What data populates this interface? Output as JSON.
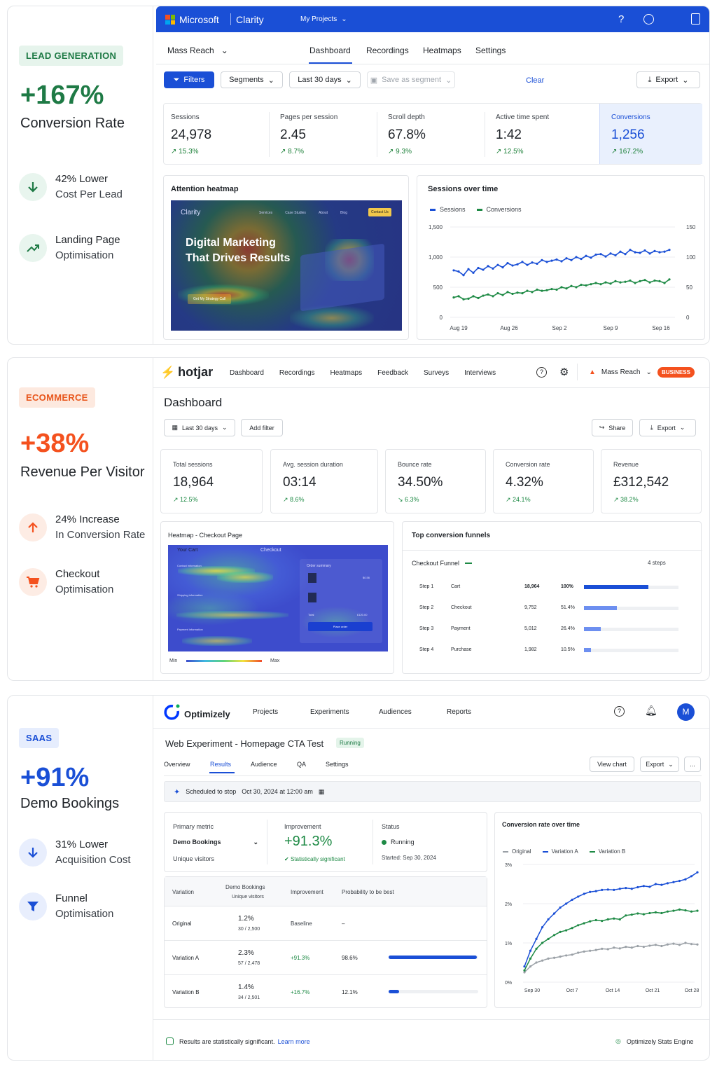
{
  "clarity": {
    "tag": "LEAD GENERATION",
    "big_stat": "+167%",
    "big_label": "Conversion Rate",
    "feat1_line1": "42% Lower",
    "feat1_line2": "Cost Per Lead",
    "feat2_line1": "Landing Page",
    "feat2_line2": "Optimisation",
    "brand": "Microsoft",
    "product": "Clarity",
    "my_projects": "My Projects",
    "project": "Mass Reach",
    "tabs": [
      "Dashboard",
      "Recordings",
      "Heatmaps",
      "Settings"
    ],
    "filters": "Filters",
    "segments": "Segments",
    "date_range": "Last 30 days",
    "save_segment": "Save as segment",
    "clear": "Clear",
    "export": "Export",
    "kpis": [
      {
        "label": "Sessions",
        "value": "24,978",
        "delta": "15.3%"
      },
      {
        "label": "Pages per session",
        "value": "2.45",
        "delta": "8.7%"
      },
      {
        "label": "Scroll depth",
        "value": "67.8%",
        "delta": "9.3%"
      },
      {
        "label": "Active time spent",
        "value": "1:42",
        "delta": "12.5%"
      },
      {
        "label": "Conversions",
        "value": "1,256",
        "delta": "167.2%"
      }
    ],
    "heatmap_title": "Attention heatmap",
    "heatmap_site": {
      "logo": "Clarity",
      "nav": [
        "Services",
        "Case Studies",
        "About",
        "Blog"
      ],
      "contact": "Contact Us",
      "headline1": "Digital Marketing",
      "headline2": "That Drives Results",
      "cta": "Get My Strategy Call"
    },
    "chart_title": "Sessions over time",
    "legend": [
      "Sessions",
      "Conversions"
    ],
    "colors": {
      "sessions": "#1a4fd6",
      "conversions": "#1e8a45",
      "brand_bar": "#1a4fd6"
    }
  },
  "hotjar": {
    "tag": "ECOMMERCE",
    "big_stat": "+38%",
    "big_label": "Revenue Per Visitor",
    "feat1_line1": "24% Increase",
    "feat1_line2": "In Conversion Rate",
    "feat2_line1": "Checkout",
    "feat2_line2": "Optimisation",
    "brand": "hotjar",
    "nav": [
      "Dashboard",
      "Recordings",
      "Heatmaps",
      "Feedback",
      "Surveys",
      "Interviews"
    ],
    "account": "Mass Reach",
    "plan": "BUSINESS",
    "page_title": "Dashboard",
    "date_range": "Last 30 days",
    "add_filter": "Add filter",
    "share": "Share",
    "export": "Export",
    "kpis": [
      {
        "label": "Total sessions",
        "value": "18,964",
        "delta": "12.5%",
        "dir": "up"
      },
      {
        "label": "Avg. session duration",
        "value": "03:14",
        "delta": "8.6%",
        "dir": "up"
      },
      {
        "label": "Bounce rate",
        "value": "34.50%",
        "delta": "6.3%",
        "dir": "down"
      },
      {
        "label": "Conversion rate",
        "value": "4.32%",
        "delta": "24.1%",
        "dir": "up"
      },
      {
        "label": "Revenue",
        "value": "£312,542",
        "delta": "38.2%",
        "dir": "up"
      }
    ],
    "heatmap_title": "Heatmap - Checkout Page",
    "heatmap_page": {
      "cart": "Your Cart",
      "checkout": "Checkout",
      "contact": "Contact information",
      "shipping": "Shipping information",
      "payment": "Payment information",
      "order_summary": "Order summary",
      "total": "Total",
      "total_value": "£120.00",
      "item_price": "$0.56",
      "place_order": "Place order"
    },
    "scale_min": "Min",
    "scale_max": "Max",
    "funnel_title": "Top conversion funnels",
    "funnel_name": "Checkout Funnel",
    "funnel_steps_count": "4 steps",
    "funnel": [
      {
        "step": "Step 1",
        "name": "Cart",
        "count": "18,964",
        "pct": "100%",
        "frac": 1.0
      },
      {
        "step": "Step 2",
        "name": "Checkout",
        "count": "9,752",
        "pct": "51.4%",
        "frac": 0.514
      },
      {
        "step": "Step 3",
        "name": "Payment",
        "count": "5,012",
        "pct": "26.4%",
        "frac": 0.264
      },
      {
        "step": "Step 4",
        "name": "Purchase",
        "count": "1,982",
        "pct": "10.5%",
        "frac": 0.105
      }
    ],
    "colors": {
      "brand": "#f4511e",
      "bar_primary": "#1a4fd6",
      "bar_secondary": "#6d8ff0"
    }
  },
  "optimizely": {
    "tag": "SAAS",
    "big_stat": "+91%",
    "big_label": "Demo Bookings",
    "feat1_line1": "31% Lower",
    "feat1_line2": "Acquisition Cost",
    "feat2_line1": "Funnel",
    "feat2_line2": "Optimisation",
    "brand": "Optimizely",
    "nav": [
      "Projects",
      "Experiments",
      "Audiences",
      "Reports"
    ],
    "avatar": "M",
    "experiment": "Web Experiment - Homepage CTA Test",
    "status_badge": "Running",
    "tabs": [
      "Overview",
      "Results",
      "Audience",
      "QA",
      "Settings"
    ],
    "view_chart": "View chart",
    "export": "Export",
    "more": "...",
    "schedule_label": "Scheduled to stop",
    "schedule_date": "Oct 30, 2024 at 12:00 am",
    "primary_metric_label": "Primary metric",
    "primary_metric": "Demo Bookings",
    "primary_metric_sub": "Unique visitors",
    "improvement_label": "Improvement",
    "improvement_value": "+91.3%",
    "significance": "Statistically significant",
    "status_label": "Status",
    "status_value": "Running",
    "started": "Started: Sep 30, 2024",
    "table_headers": {
      "variation": "Variation",
      "metric": "Demo Bookings",
      "metric_sub": "Unique visitors",
      "improvement": "Improvement",
      "probability": "Probability to be best"
    },
    "rows": [
      {
        "name": "Original",
        "rate": "1.2%",
        "counts": "30 / 2,500",
        "improvement": "Baseline",
        "probability": "–",
        "prob_frac": null
      },
      {
        "name": "Variation A",
        "rate": "2.3%",
        "counts": "57 / 2,478",
        "improvement": "+91.3%",
        "probability": "98.6%",
        "prob_frac": 0.986
      },
      {
        "name": "Variation B",
        "rate": "1.4%",
        "counts": "34 / 2,501",
        "improvement": "+16.7%",
        "probability": "12.1%",
        "prob_frac": 0.121
      }
    ],
    "chart_title": "Conversion rate over time",
    "legend": [
      "Original",
      "Variation A",
      "Variation B"
    ],
    "footer_text": "Results are statistically significant.",
    "footer_link": "Learn more",
    "stats_engine": "Optimizely Stats Engine",
    "colors": {
      "original": "#9aa0a6",
      "variation_a": "#1a4fd6",
      "variation_b": "#1e8a45",
      "brand": "#0037ff"
    }
  },
  "chart_data": [
    {
      "type": "line",
      "title": "Sessions over time",
      "x_tick_labels": [
        "Aug 19",
        "Aug 26",
        "Sep 2",
        "Sep 9",
        "Sep 16"
      ],
      "y_left_ticks": [
        "0",
        "500",
        "1,000",
        "1,500"
      ],
      "y_right_ticks": [
        "0",
        "50",
        "100",
        "150"
      ],
      "ylim_left": [
        0,
        1500
      ],
      "ylim_right": [
        0,
        150
      ],
      "series": [
        {
          "name": "Sessions",
          "axis": "left",
          "values": [
            780,
            760,
            700,
            800,
            740,
            820,
            790,
            850,
            810,
            870,
            830,
            900,
            860,
            880,
            920,
            870,
            910,
            890,
            950,
            920,
            940,
            960,
            930,
            980,
            950,
            1000,
            970,
            1020,
            990,
            1040,
            1050,
            1010,
            1060,
            1030,
            1090,
            1050,
            1120,
            1080,
            1070,
            1110,
            1060,
            1100,
            1080,
            1090,
            1120
          ]
        },
        {
          "name": "Conversions",
          "axis": "right",
          "values": [
            33,
            35,
            30,
            31,
            35,
            32,
            36,
            38,
            35,
            40,
            37,
            42,
            39,
            41,
            40,
            44,
            42,
            46,
            44,
            45,
            47,
            46,
            50,
            48,
            52,
            50,
            54,
            53,
            55,
            57,
            55,
            58,
            56,
            60,
            58,
            59,
            61,
            57,
            60,
            62,
            58,
            61,
            60,
            57,
            63
          ]
        }
      ]
    },
    {
      "type": "bar",
      "title": "Top conversion funnels",
      "categories": [
        "Cart",
        "Checkout",
        "Payment",
        "Purchase"
      ],
      "values": [
        18964,
        9752,
        5012,
        1982
      ],
      "percent": [
        100,
        51.4,
        26.4,
        10.5
      ]
    },
    {
      "type": "line",
      "title": "Conversion rate over time",
      "x_tick_labels": [
        "Sep 30",
        "Oct 7",
        "Oct 14",
        "Oct 21",
        "Oct 28"
      ],
      "y_ticks": [
        "0%",
        "1%",
        "2%",
        "3%"
      ],
      "ylim": [
        0,
        3
      ],
      "series": [
        {
          "name": "Original",
          "values": [
            0.25,
            0.4,
            0.5,
            0.55,
            0.6,
            0.62,
            0.65,
            0.68,
            0.7,
            0.75,
            0.78,
            0.8,
            0.82,
            0.85,
            0.84,
            0.88,
            0.86,
            0.9,
            0.88,
            0.92,
            0.9,
            0.93,
            0.95,
            0.92,
            0.96,
            0.98,
            0.95,
            1.0,
            0.97,
            0.96
          ]
        },
        {
          "name": "Variation A",
          "values": [
            0.4,
            0.8,
            1.1,
            1.4,
            1.6,
            1.75,
            1.9,
            2.0,
            2.1,
            2.18,
            2.25,
            2.3,
            2.32,
            2.35,
            2.36,
            2.35,
            2.38,
            2.4,
            2.38,
            2.42,
            2.45,
            2.43,
            2.5,
            2.48,
            2.52,
            2.55,
            2.58,
            2.62,
            2.7,
            2.8
          ]
        },
        {
          "name": "Variation B",
          "values": [
            0.3,
            0.6,
            0.85,
            1.0,
            1.1,
            1.2,
            1.28,
            1.32,
            1.38,
            1.45,
            1.5,
            1.55,
            1.58,
            1.56,
            1.6,
            1.62,
            1.6,
            1.7,
            1.72,
            1.75,
            1.73,
            1.76,
            1.78,
            1.76,
            1.8,
            1.82,
            1.85,
            1.83,
            1.8,
            1.82
          ]
        }
      ]
    }
  ]
}
